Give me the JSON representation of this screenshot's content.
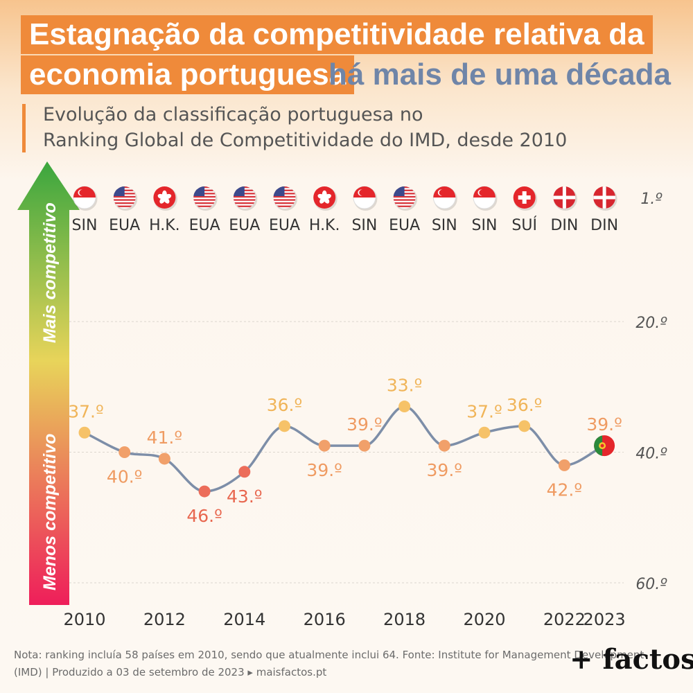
{
  "title": {
    "line1": "Estagnação da competitividade relativa da",
    "line2": "economia portuguesa",
    "highlight": "há mais de uma década"
  },
  "subtitle": {
    "line1": "Evolução da classificação portuguesa no",
    "line2": "Ranking Global de Competitividade do IMD, desde 2010"
  },
  "arrow": {
    "top_label": "Mais competitivo",
    "bottom_label": "Menos competitivo"
  },
  "leaders": [
    {
      "year": 2010,
      "code": "SIN",
      "flag": "singapore-flag"
    },
    {
      "year": 2011,
      "code": "EUA",
      "flag": "usa-flag"
    },
    {
      "year": 2012,
      "code": "H.K.",
      "flag": "hong-kong-flag"
    },
    {
      "year": 2013,
      "code": "EUA",
      "flag": "usa-flag"
    },
    {
      "year": 2014,
      "code": "EUA",
      "flag": "usa-flag"
    },
    {
      "year": 2015,
      "code": "EUA",
      "flag": "usa-flag"
    },
    {
      "year": 2016,
      "code": "H.K.",
      "flag": "hong-kong-flag"
    },
    {
      "year": 2017,
      "code": "SIN",
      "flag": "singapore-flag"
    },
    {
      "year": 2018,
      "code": "EUA",
      "flag": "usa-flag"
    },
    {
      "year": 2019,
      "code": "SIN",
      "flag": "singapore-flag"
    },
    {
      "year": 2020,
      "code": "SIN",
      "flag": "singapore-flag"
    },
    {
      "year": 2021,
      "code": "SUÍ",
      "flag": "switzerland-flag"
    },
    {
      "year": 2022,
      "code": "DIN",
      "flag": "denmark-flag"
    },
    {
      "year": 2023,
      "code": "DIN",
      "flag": "denmark-flag"
    }
  ],
  "chart_data": {
    "type": "line",
    "x": [
      2010,
      2011,
      2012,
      2013,
      2014,
      2015,
      2016,
      2017,
      2018,
      2019,
      2020,
      2021,
      2022,
      2023
    ],
    "series": [
      {
        "values": [
          37,
          40,
          41,
          46,
          43,
          36,
          39,
          39,
          33,
          39,
          37,
          36,
          42,
          39
        ],
        "labels": [
          "37.º",
          "40.º",
          "41.º",
          "46.º",
          "43.º",
          "36.º",
          "39.º",
          "39.º",
          "33.º",
          "39.º",
          "37.º",
          "36.º",
          "42.º",
          "39.º"
        ],
        "label_positions": [
          "above",
          "below",
          "above",
          "below",
          "below",
          "above",
          "below",
          "above",
          "above",
          "below",
          "above",
          "above",
          "below",
          "above"
        ]
      }
    ],
    "x_ticks": [
      2010,
      2012,
      2014,
      2016,
      2018,
      2020,
      2022,
      2023
    ],
    "y_ticks": [
      {
        "value": 1,
        "label": "1.º"
      },
      {
        "value": 20,
        "label": "20.º"
      },
      {
        "value": 40,
        "label": "40.º"
      },
      {
        "value": 60,
        "label": "60.º"
      }
    ],
    "ylim": [
      1,
      60
    ],
    "y_inverted": true,
    "grid": true,
    "colors": {
      "line": "#7d8ea8",
      "best": "#f6c268",
      "mid": "#f1a06a",
      "worst": "#ec6d5a",
      "label_best": "#f0b458",
      "label_mid": "#ef9b62",
      "label_worst": "#e8674f"
    },
    "last_point_flag": "portugal-flag"
  },
  "footer": {
    "note_line1": "Nota: ranking incluía 58 países em 2010, sendo que atualmente inclui 64. Fonte: Institute for Management Development",
    "note_line2": "(IMD)  |  Produzido a 03 de setembro de 2023 ▸ maisfactos.pt",
    "logo": "+ factos"
  },
  "colors": {
    "title_bg": "#ef8a3a",
    "title_text": "#ffffff",
    "highlight_text": "#6f85a8",
    "arrow_top": "#3aa63e",
    "arrow_mid": "#e8d45a",
    "arrow_bottom": "#ee1e5a"
  }
}
